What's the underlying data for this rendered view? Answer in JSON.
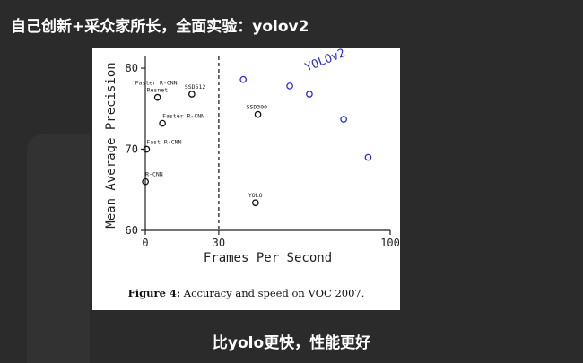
{
  "header": {
    "title": "自己创新+采众家所长，全面实验：yolov2"
  },
  "figure": {
    "caption_label": "Figure 4:",
    "caption_text": " Accuracy and speed on VOC 2007."
  },
  "footer": {
    "subtitle": "比yolo更快，性能更好"
  },
  "chart_data": {
    "type": "scatter",
    "xlabel": "Frames Per Second",
    "ylabel": "Mean Average Precision",
    "xlim": [
      0,
      100
    ],
    "ylim": [
      60,
      81
    ],
    "xticks": [
      0,
      30,
      100
    ],
    "yticks": [
      60,
      70,
      80
    ],
    "threshold_x": 30,
    "annotation": "YOLOv2",
    "colors": {
      "baseline": "#111111",
      "yolov2": "#2c2ccc"
    },
    "points": [
      {
        "label": "Faster R-CNN\nResnet",
        "x": 5,
        "y": 76.4,
        "series": "baseline"
      },
      {
        "label": "SSD512",
        "x": 19,
        "y": 76.8,
        "series": "baseline"
      },
      {
        "label": "Faster R-CNN",
        "x": 7,
        "y": 73.2,
        "series": "baseline"
      },
      {
        "label": "SSD300",
        "x": 46,
        "y": 74.3,
        "series": "baseline"
      },
      {
        "label": "Fast R-CNN",
        "x": 0.5,
        "y": 70.0,
        "series": "baseline"
      },
      {
        "label": "R-CNN",
        "x": 0.05,
        "y": 66.0,
        "series": "baseline"
      },
      {
        "label": "YOLO",
        "x": 45,
        "y": 63.4,
        "series": "baseline"
      },
      {
        "label": "",
        "x": 40,
        "y": 78.6,
        "series": "yolov2"
      },
      {
        "label": "",
        "x": 59,
        "y": 77.8,
        "series": "yolov2"
      },
      {
        "label": "",
        "x": 67,
        "y": 76.8,
        "series": "yolov2"
      },
      {
        "label": "",
        "x": 81,
        "y": 73.7,
        "series": "yolov2"
      },
      {
        "label": "",
        "x": 91,
        "y": 69.0,
        "series": "yolov2"
      }
    ]
  }
}
